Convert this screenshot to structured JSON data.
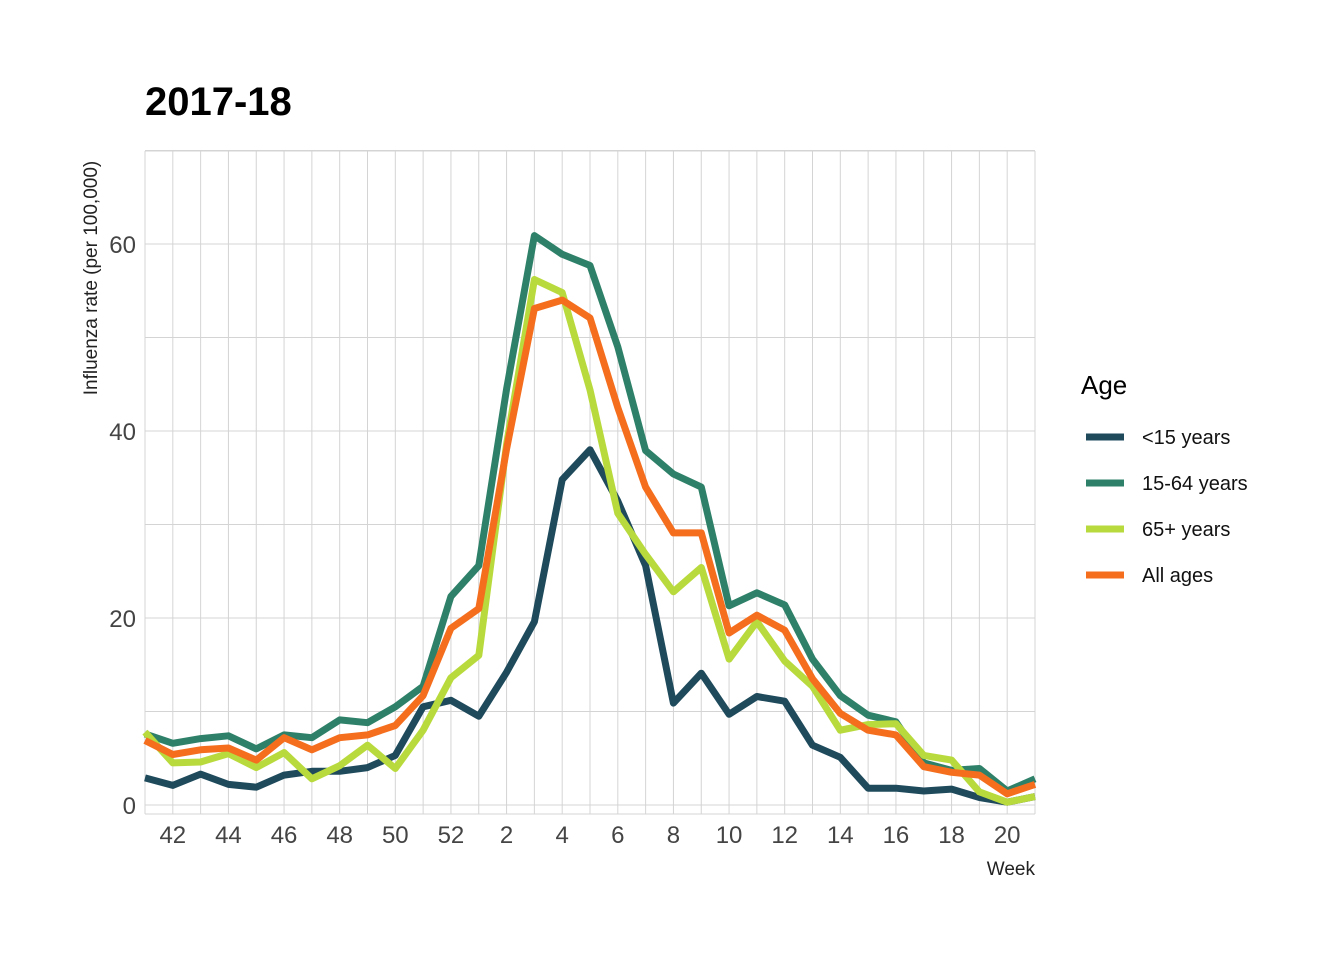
{
  "chart_data": {
    "type": "line",
    "title": "2017-18",
    "xlabel": "Week",
    "ylabel": "Influenza rate (per 100,000)",
    "ylim": [
      0,
      70
    ],
    "yticks": [
      0,
      20,
      40,
      60
    ],
    "grid": true,
    "legend_title": "Age",
    "legend_position": "right",
    "x": [
      41,
      42,
      43,
      44,
      45,
      46,
      47,
      48,
      49,
      50,
      51,
      52,
      1,
      2,
      3,
      4,
      5,
      6,
      7,
      8,
      9,
      10,
      11,
      12,
      13,
      14,
      15,
      16,
      17,
      18,
      19,
      20,
      21
    ],
    "x_tick_labels": [
      "42",
      "44",
      "46",
      "48",
      "50",
      "52",
      "2",
      "4",
      "6",
      "8",
      "10",
      "12",
      "14",
      "16",
      "18",
      "20"
    ],
    "series": [
      {
        "name": "<15 years",
        "color": "#1e4a5c",
        "values": [
          2.9,
          2.1,
          3.3,
          2.2,
          1.9,
          3.2,
          3.6,
          3.6,
          4.0,
          5.3,
          10.5,
          11.2,
          9.5,
          14.2,
          19.6,
          34.8,
          38.0,
          32.5,
          25.6,
          10.9,
          14.1,
          9.7,
          11.6,
          11.1,
          6.4,
          5.1,
          1.8,
          1.8,
          1.5,
          1.7,
          0.8,
          0.3,
          0.9
        ]
      },
      {
        "name": "15-64 years",
        "color": "#2e8168",
        "values": [
          7.6,
          6.6,
          7.1,
          7.4,
          6.0,
          7.5,
          7.2,
          9.1,
          8.8,
          10.5,
          12.7,
          22.3,
          25.6,
          44.5,
          60.9,
          58.9,
          57.7,
          49.0,
          37.9,
          35.4,
          34.0,
          21.3,
          22.7,
          21.4,
          15.6,
          11.7,
          9.6,
          8.9,
          4.5,
          3.7,
          3.9,
          1.5,
          2.8
        ]
      },
      {
        "name": "65+ years",
        "color": "#b9da3c",
        "values": [
          7.8,
          4.5,
          4.6,
          5.5,
          4.0,
          5.6,
          2.8,
          4.2,
          6.4,
          3.9,
          8.0,
          13.6,
          16.0,
          38.6,
          56.2,
          54.8,
          44.4,
          31.2,
          26.8,
          22.8,
          25.4,
          15.6,
          19.6,
          15.4,
          12.7,
          8.0,
          8.6,
          8.7,
          5.3,
          4.8,
          1.4,
          0.3,
          0.9
        ]
      },
      {
        "name": "All ages",
        "color": "#f46e1e",
        "values": [
          6.9,
          5.4,
          5.9,
          6.1,
          4.8,
          7.2,
          5.9,
          7.2,
          7.5,
          8.5,
          11.7,
          18.9,
          21.0,
          38.1,
          53.1,
          54.0,
          52.1,
          42.5,
          34.0,
          29.1,
          29.1,
          18.4,
          20.3,
          18.7,
          13.5,
          9.8,
          8.0,
          7.5,
          4.1,
          3.5,
          3.2,
          1.2,
          2.2
        ]
      }
    ]
  }
}
